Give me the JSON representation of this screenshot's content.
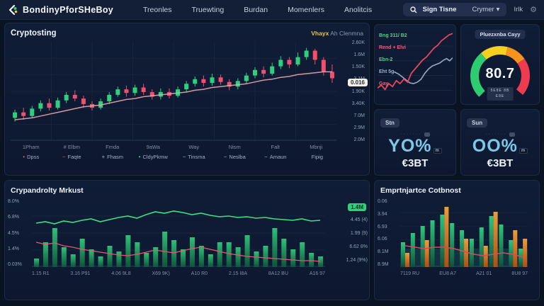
{
  "nav": {
    "brand": "BondinyPforSHeBoy",
    "items": [
      "Treonles",
      "Truewting",
      "Burdan",
      "Momenlers",
      "Anolitcis"
    ],
    "search": {
      "label": "Sign Tisne",
      "dropdown": "Crymer",
      "caret": "▾"
    },
    "right_label": "Irlk"
  },
  "colors": {
    "background": "#0a1322",
    "panel": "#101d36",
    "candle_up": "#2fcf7f",
    "candle_down": "#f0506e",
    "ma_line": "#e8a7b0",
    "accent_yellow": "#e8c54a",
    "accent_cyan": "#7cc8e8",
    "accent_orange": "#f6921e",
    "gauge_green": "#2ecc71",
    "gauge_yellow": "#f5d020",
    "gauge_orange": "#f6921e",
    "gauge_red": "#ef3b4f"
  },
  "main_chart": {
    "title": "Cryptosting",
    "subtitle_accent": "Vhayx",
    "subtitle_rest": "Ah Clenmna",
    "price_badge": "0.016",
    "y_ticks": [
      "2.60K",
      "1.6M",
      "1.50K",
      "3.1M",
      "1.90K",
      "3.40K",
      "7.0M",
      "2.9M",
      "2.0M"
    ],
    "x_ticks": [
      "1Pham",
      "# Elbm",
      "Fmda",
      "9aWa",
      "Way",
      "Nism",
      "Falt",
      "Mbnji"
    ],
    "legend": [
      {
        "label": "Dpss",
        "marker": "•",
        "color": "#f0506e"
      },
      {
        "label": "Faqte",
        "marker": "−",
        "color": "#f0506e"
      },
      {
        "label": "Fhasm",
        "marker": "+",
        "color": "#9fb0c8"
      },
      {
        "label": "CldyPkmw",
        "marker": "•",
        "color": "#2fcf7f"
      },
      {
        "label": "Tinsma",
        "marker": "−",
        "color": "#9fb0c8"
      },
      {
        "label": "Neslba",
        "marker": "−",
        "color": "#9fb0c8"
      },
      {
        "label": "Amaun",
        "marker": "−",
        "color": "#9fb0c8"
      },
      {
        "label": "Fipig",
        "marker": "",
        "color": "#9fb0c8"
      }
    ],
    "candles": [
      [
        22,
        28,
        18,
        31
      ],
      [
        28,
        24,
        20,
        33
      ],
      [
        24,
        32,
        22,
        35
      ],
      [
        32,
        38,
        29,
        41
      ],
      [
        38,
        33,
        30,
        43
      ],
      [
        33,
        41,
        31,
        44
      ],
      [
        41,
        47,
        38,
        50
      ],
      [
        47,
        43,
        40,
        52
      ],
      [
        43,
        37,
        33,
        46
      ],
      [
        37,
        33,
        30,
        40
      ],
      [
        33,
        40,
        31,
        43
      ],
      [
        40,
        47,
        37,
        50
      ],
      [
        47,
        53,
        45,
        56
      ],
      [
        53,
        49,
        45,
        57
      ],
      [
        49,
        55,
        46,
        58
      ],
      [
        55,
        50,
        47,
        59
      ],
      [
        50,
        45,
        42,
        53
      ],
      [
        45,
        50,
        42,
        54
      ],
      [
        50,
        46,
        43,
        54
      ],
      [
        46,
        53,
        44,
        56
      ],
      [
        53,
        59,
        50,
        62
      ],
      [
        59,
        64,
        56,
        67
      ],
      [
        64,
        60,
        56,
        68
      ],
      [
        60,
        66,
        57,
        70
      ],
      [
        66,
        61,
        58,
        69
      ],
      [
        61,
        56,
        52,
        64
      ],
      [
        56,
        62,
        53,
        65
      ],
      [
        62,
        68,
        59,
        71
      ],
      [
        68,
        74,
        65,
        77
      ],
      [
        74,
        70,
        66,
        78
      ],
      [
        70,
        78,
        68,
        82
      ],
      [
        78,
        85,
        75,
        89
      ],
      [
        85,
        80,
        76,
        88
      ],
      [
        80,
        88,
        78,
        93
      ],
      [
        88,
        95,
        85,
        98
      ],
      [
        95,
        85,
        80,
        97
      ],
      [
        85,
        72,
        68,
        88
      ],
      [
        72,
        65,
        60,
        80
      ]
    ],
    "ma_line": [
      20,
      21,
      22,
      24,
      26,
      28,
      30,
      32,
      34,
      35,
      36,
      38,
      40,
      42,
      43,
      45,
      46,
      47,
      48,
      49,
      50,
      52,
      53,
      55,
      56,
      57,
      58,
      59,
      61,
      63,
      64,
      66,
      67,
      69,
      70,
      71,
      72,
      72
    ]
  },
  "mini_chart": {
    "labels": [
      {
        "text": "Bng 311/ B2",
        "color": "#46d487"
      },
      {
        "text": "Rend + Elvi",
        "color": "#f2607a"
      },
      {
        "text": "Ebn-2",
        "color": "#46d487"
      },
      {
        "text": "Eht 5g",
        "color": "#9fb0c8"
      },
      {
        "text": "Gay",
        "color": "#f2607a"
      }
    ],
    "red_line": [
      [
        0,
        82
      ],
      [
        5,
        78
      ],
      [
        10,
        84
      ],
      [
        15,
        76
      ],
      [
        20,
        80
      ],
      [
        25,
        72
      ],
      [
        30,
        76
      ],
      [
        35,
        70
      ],
      [
        40,
        74
      ],
      [
        45,
        62
      ],
      [
        50,
        56
      ],
      [
        55,
        50
      ],
      [
        60,
        44
      ],
      [
        65,
        40
      ],
      [
        70,
        34
      ],
      [
        75,
        28
      ],
      [
        80,
        24
      ],
      [
        85,
        18
      ],
      [
        90,
        14
      ],
      [
        95,
        10
      ],
      [
        100,
        8
      ]
    ],
    "grey_line": [
      [
        22,
        60
      ],
      [
        28,
        63
      ],
      [
        33,
        67
      ],
      [
        38,
        71
      ],
      [
        43,
        75
      ],
      [
        48,
        76
      ],
      [
        53,
        74
      ],
      [
        58,
        70
      ],
      [
        63,
        62
      ],
      [
        68,
        56
      ],
      [
        73,
        52
      ],
      [
        78,
        50
      ],
      [
        83,
        48
      ],
      [
        88,
        44
      ],
      [
        92,
        42
      ],
      [
        96,
        45
      ],
      [
        100,
        41
      ]
    ]
  },
  "gauge": {
    "title": "Pluezxnba Cayy",
    "value": "80.7",
    "sub_lines": [
      "5E8E 8B",
      "E8E"
    ],
    "segments": [
      {
        "color": "#2ecc71",
        "from": -135,
        "to": -40
      },
      {
        "color": "#f5d020",
        "from": -40,
        "to": 15
      },
      {
        "color": "#f6921e",
        "from": 15,
        "to": 55
      },
      {
        "color": "#ef3b4f",
        "from": 55,
        "to": 130
      }
    ]
  },
  "cards": [
    {
      "badge": "Stn",
      "ghost": "·······",
      "value": "YO%",
      "suffix": "m",
      "sub": "€3BT"
    },
    {
      "badge": "Sun",
      "ghost": "·······",
      "value": "OO%",
      "suffix": "m",
      "sub": "€3BT"
    }
  ],
  "volume_chart": {
    "title": "Crypandrolty Mrkust",
    "badge": "1.4M",
    "y_left": [
      "8.0%",
      "6.8%",
      "4.5%",
      "1.4%",
      "0.03%"
    ],
    "y_right": [
      "4.45 (4)",
      "1.99 (9)",
      "6.62 8%",
      "1.24 (9%)"
    ],
    "x_ticks": [
      "1.15 R1",
      "3.16 P91",
      "4.06 9L8",
      "X69 9K)",
      "A10 R0",
      "2.15 I8A",
      "8A12 BU",
      "A16 97"
    ],
    "bars": [
      12,
      35,
      55,
      28,
      18,
      40,
      25,
      15,
      30,
      22,
      45,
      35,
      20,
      28,
      50,
      38,
      25,
      42,
      30,
      18,
      35,
      35,
      28,
      45,
      22,
      30,
      55,
      40,
      25,
      35,
      20,
      15
    ],
    "green_line": [
      62,
      64,
      61,
      65,
      63,
      66,
      68,
      64,
      67,
      70,
      72,
      69,
      74,
      78,
      76,
      79,
      77,
      74,
      76,
      73,
      71,
      72,
      70,
      71,
      69,
      70,
      68,
      67,
      66,
      68,
      65,
      66
    ],
    "red_line": [
      35,
      32,
      34,
      30,
      28,
      25,
      23,
      21,
      19,
      17,
      16,
      18,
      21,
      24,
      22,
      20,
      23,
      26,
      28,
      25,
      22,
      19,
      17,
      15,
      14,
      13,
      12,
      11,
      10,
      9,
      9,
      8
    ]
  },
  "grouped_chart": {
    "title": "Emprtnjartce Cotbnost",
    "y_left": [
      "0.06",
      "3.94",
      "6.93",
      "6.06",
      "8.1M",
      "8.9M"
    ],
    "x_ticks": [
      "7119 RU",
      "EU8 A7",
      "A21 01",
      "8U8 97"
    ],
    "green_bars": [
      35,
      48,
      58,
      66,
      74,
      62,
      52,
      40,
      56,
      72,
      60,
      38,
      26
    ],
    "orange_bars": [
      20,
      0,
      38,
      0,
      85,
      0,
      40,
      0,
      30,
      78,
      0,
      52,
      40
    ],
    "red_line": [
      30,
      28,
      26,
      28,
      28,
      26,
      22,
      18,
      16,
      18,
      20,
      18,
      14
    ]
  }
}
